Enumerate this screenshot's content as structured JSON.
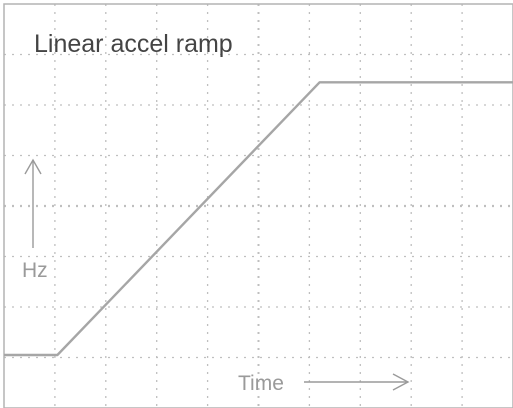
{
  "chart_data": {
    "type": "line",
    "title": "Linear accel ramp",
    "xlabel": "Time",
    "ylabel": "Hz",
    "grid": true,
    "x_divisions": 10,
    "y_divisions": 8,
    "xlim": [
      0,
      10
    ],
    "ylim": [
      0,
      8
    ],
    "series": [
      {
        "x": [
          0,
          1.05,
          6.2,
          10
        ],
        "y": [
          1.05,
          1.05,
          6.45,
          6.45
        ]
      }
    ]
  },
  "colors": {
    "background": "#ffffff",
    "trace": "#a6a6a6",
    "grid": "#bfbfbf",
    "frame": "#b3b3b3",
    "title_text": "#444444",
    "label_text": "#9a9a9a",
    "arrow": "#9a9a9a"
  }
}
